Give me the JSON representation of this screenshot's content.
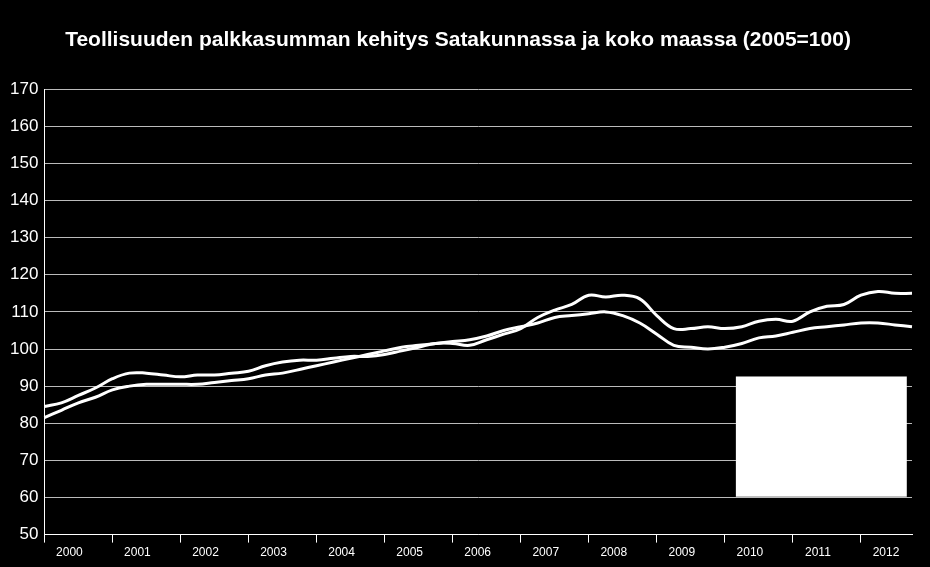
{
  "chart_data": {
    "type": "line",
    "title": "Teollisuuden palkkasumman kehitys Satakunnassa ja koko maassa (2005=100)",
    "categories": [
      null,
      "2000",
      null,
      null,
      null,
      "2001",
      null,
      null,
      null,
      "2002",
      null,
      null,
      null,
      "2003",
      null,
      null,
      null,
      "2004",
      null,
      null,
      null,
      "2005",
      null,
      null,
      null,
      "2006",
      null,
      null,
      null,
      "2007",
      null,
      null,
      null,
      "2008",
      null,
      null,
      null,
      "2009",
      null,
      null,
      null,
      "2010",
      null,
      null,
      null,
      "2011",
      null,
      null,
      null,
      "2012",
      null,
      null
    ],
    "series": [
      {
        "color": "#ffffff",
        "values": [
          84.5,
          85.5,
          87.5,
          89.5,
          92,
          93.5,
          93.5,
          93,
          92.5,
          93,
          93,
          93.5,
          94,
          95.5,
          96.5,
          97,
          97,
          97.5,
          98,
          98,
          98.5,
          99.5,
          100.5,
          101.5,
          101.5,
          101,
          102.5,
          104,
          105.5,
          108.5,
          110.5,
          112,
          114.5,
          114,
          114.5,
          113.5,
          109,
          105.5,
          105.5,
          106,
          105.5,
          106,
          107.5,
          108,
          107.5,
          110,
          111.5,
          112,
          114.5,
          115.5,
          115,
          115
        ]
      },
      {
        "color": "#ffffff",
        "values": [
          81.5,
          83.5,
          85.5,
          87,
          89,
          90,
          90.5,
          90.5,
          90.5,
          90.5,
          91,
          91.5,
          92,
          93,
          93.5,
          94.5,
          95.5,
          96.5,
          97.5,
          98.5,
          99.5,
          100.5,
          101,
          101.5,
          102,
          102.5,
          103.5,
          105,
          106,
          107,
          108.5,
          109,
          109.5,
          110,
          109,
          107,
          104,
          101,
          100.5,
          100,
          100.5,
          101.5,
          103,
          103.5,
          104.5,
          105.5,
          106,
          106.5,
          107,
          107,
          106.5,
          106
        ]
      }
    ],
    "ylim": [
      50,
      170
    ],
    "yticks": [
      50,
      60,
      70,
      80,
      90,
      100,
      110,
      120,
      130,
      140,
      150,
      160,
      170
    ],
    "grid": true
  }
}
